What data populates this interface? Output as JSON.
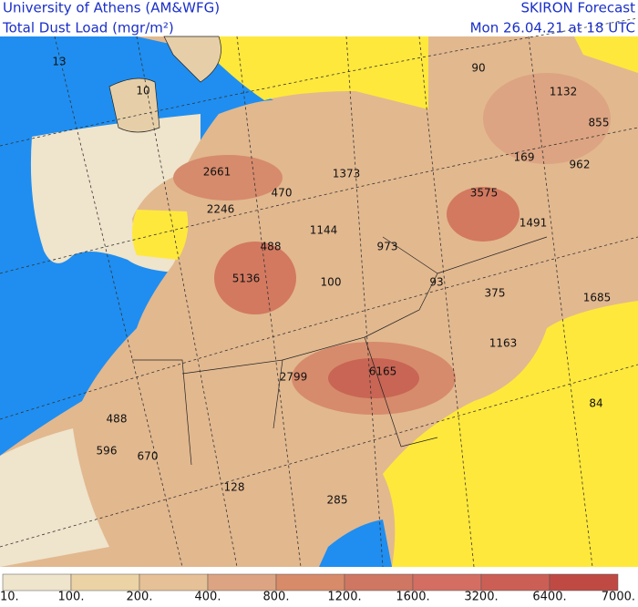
{
  "header": {
    "institution": "University of Athens (AM&WFG)",
    "field": "Total Dust Load (mgr/m²)",
    "model": "SKIRON Forecast",
    "valid_time": "Mon 26.04.21 at 18 UTC"
  },
  "map": {
    "labels": [
      13,
      10,
      90,
      1132,
      855,
      169,
      962,
      2661,
      1373,
      470,
      3575,
      2246,
      1491,
      488,
      1144,
      973,
      5136,
      100,
      93,
      375,
      1685,
      1163,
      2799,
      6165,
      84,
      488,
      596,
      670,
      128,
      285
    ]
  },
  "colorbar": {
    "labels": [
      "10.",
      "100.",
      "200.",
      "400.",
      "800.",
      "1200.",
      "1600.",
      "3200.",
      "6400.",
      "7000."
    ]
  }
}
